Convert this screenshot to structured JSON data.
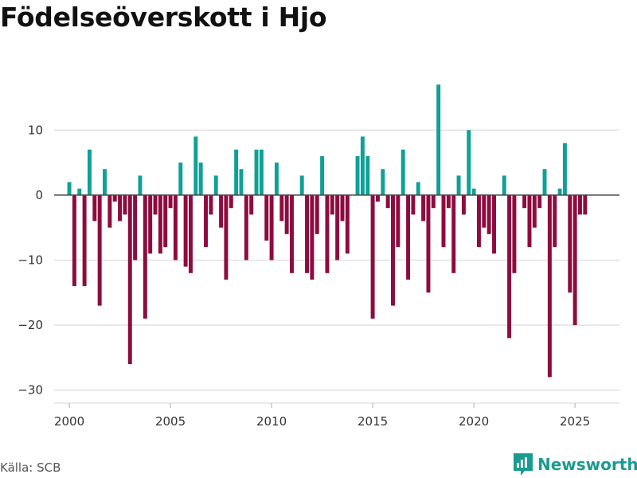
{
  "colors": {
    "positive": "#0fa196",
    "negative": "#8d0c3f",
    "grid": "#dddddd",
    "zero_line": "#444444",
    "brand": "#1a9b8f"
  },
  "footer": {
    "source": "Källa: SCB",
    "brand": "Newsworthy"
  },
  "chart_data": {
    "type": "bar",
    "title": "Födelseöverskott i Hjo",
    "xlabel": "",
    "ylabel": "",
    "frequency": "quarterly",
    "start": "2000-Q1",
    "xlim": [
      1999.25,
      2027.2
    ],
    "ylim": [
      -32,
      18
    ],
    "yticks": [
      10,
      0,
      -10,
      -20,
      -30
    ],
    "xticks": [
      2000,
      2005,
      2010,
      2015,
      2020,
      2025
    ],
    "grid": true,
    "legend": "none",
    "values": [
      2,
      -14,
      1,
      -14,
      7,
      -4,
      -17,
      4,
      -5,
      -1,
      -4,
      -3,
      -26,
      -10,
      3,
      -19,
      -9,
      -3,
      -9,
      -8,
      -2,
      -10,
      5,
      -11,
      -12,
      9,
      5,
      -8,
      -3,
      3,
      -5,
      -13,
      -2,
      7,
      4,
      -10,
      -3,
      7,
      7,
      -7,
      -10,
      5,
      -4,
      -6,
      -12,
      0,
      3,
      -12,
      -13,
      -6,
      6,
      -12,
      -3,
      -10,
      -4,
      -9,
      0,
      6,
      9,
      6,
      -19,
      -1,
      4,
      -2,
      -17,
      -8,
      7,
      -13,
      -3,
      2,
      -4,
      -15,
      -2,
      17,
      -8,
      -2,
      -12,
      3,
      -3,
      10,
      1,
      -8,
      -5,
      -6,
      -9,
      0,
      3,
      -22,
      -12,
      0,
      -2,
      -8,
      -5,
      -2,
      4,
      -28,
      -8,
      1,
      8,
      -15,
      -20,
      -3,
      -3
    ]
  }
}
